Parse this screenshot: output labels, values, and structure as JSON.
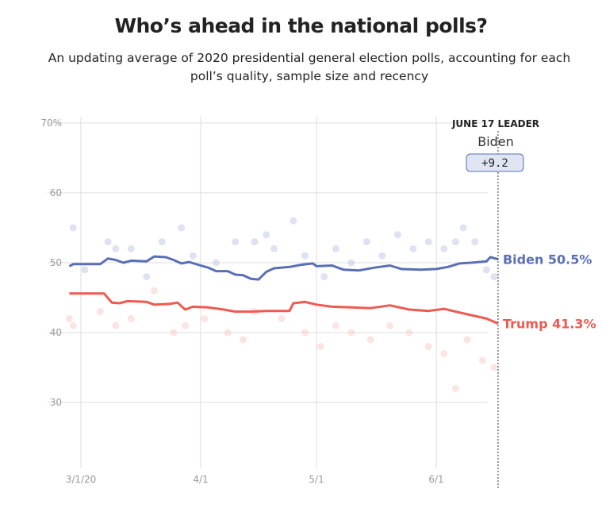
{
  "title": "Who’s ahead in the national polls?",
  "subtitle": "An updating average of 2020 presidential general election polls, accounting for each poll’s quality, sample size and recency",
  "leader": {
    "heading": "JUNE 17 LEADER",
    "name": "Biden",
    "margin": "+9.2"
  },
  "chart_data": {
    "type": "line",
    "title": "Who’s ahead in the national polls?",
    "ylim": [
      30,
      70
    ],
    "yticks": [
      {
        "v": 70,
        "label": "70%"
      },
      {
        "v": 60,
        "label": "60"
      },
      {
        "v": 50,
        "label": "50"
      },
      {
        "v": 40,
        "label": "40"
      },
      {
        "v": 30,
        "label": "30"
      }
    ],
    "xlim": [
      "2020-02-23",
      "2020-06-21"
    ],
    "xticks": [
      {
        "d": "2020-03-01",
        "label": "3/1/20"
      },
      {
        "d": "2020-04-01",
        "label": "4/1"
      },
      {
        "d": "2020-05-01",
        "label": "5/1"
      },
      {
        "d": "2020-06-01",
        "label": "6/1"
      }
    ],
    "grid": true,
    "marker_date": "2020-06-17",
    "series": [
      {
        "name": "Biden",
        "end_label": "Biden 50.5%",
        "color": "#5a6fb5",
        "dot_color": "#c3cbe6",
        "points": [
          [
            "2020-02-27",
            49.5
          ],
          [
            "2020-02-28",
            49.8
          ],
          [
            "2020-03-06",
            49.8
          ],
          [
            "2020-03-08",
            50.6
          ],
          [
            "2020-03-10",
            50.4
          ],
          [
            "2020-03-12",
            50.0
          ],
          [
            "2020-03-14",
            50.3
          ],
          [
            "2020-03-18",
            50.2
          ],
          [
            "2020-03-20",
            50.9
          ],
          [
            "2020-03-23",
            50.8
          ],
          [
            "2020-03-25",
            50.4
          ],
          [
            "2020-03-27",
            49.9
          ],
          [
            "2020-03-29",
            50.1
          ],
          [
            "2020-04-01",
            49.6
          ],
          [
            "2020-04-03",
            49.3
          ],
          [
            "2020-04-05",
            48.8
          ],
          [
            "2020-04-08",
            48.8
          ],
          [
            "2020-04-10",
            48.3
          ],
          [
            "2020-04-12",
            48.2
          ],
          [
            "2020-04-14",
            47.7
          ],
          [
            "2020-04-16",
            47.6
          ],
          [
            "2020-04-18",
            48.7
          ],
          [
            "2020-04-20",
            49.2
          ],
          [
            "2020-04-24",
            49.4
          ],
          [
            "2020-04-27",
            49.7
          ],
          [
            "2020-04-30",
            49.9
          ],
          [
            "2020-05-01",
            49.5
          ],
          [
            "2020-05-05",
            49.6
          ],
          [
            "2020-05-08",
            49.0
          ],
          [
            "2020-05-12",
            48.9
          ],
          [
            "2020-05-16",
            49.3
          ],
          [
            "2020-05-20",
            49.6
          ],
          [
            "2020-05-23",
            49.1
          ],
          [
            "2020-05-28",
            49.0
          ],
          [
            "2020-06-01",
            49.1
          ],
          [
            "2020-06-04",
            49.4
          ],
          [
            "2020-06-07",
            49.9
          ],
          [
            "2020-06-10",
            50.0
          ],
          [
            "2020-06-14",
            50.2
          ],
          [
            "2020-06-15",
            50.8
          ],
          [
            "2020-06-17",
            50.5
          ]
        ],
        "polls": [
          [
            "2020-02-28",
            55
          ],
          [
            "2020-03-02",
            49
          ],
          [
            "2020-03-08",
            53
          ],
          [
            "2020-03-10",
            52
          ],
          [
            "2020-03-14",
            52
          ],
          [
            "2020-03-18",
            48
          ],
          [
            "2020-03-22",
            53
          ],
          [
            "2020-03-27",
            55
          ],
          [
            "2020-03-30",
            51
          ],
          [
            "2020-04-05",
            50
          ],
          [
            "2020-04-10",
            53
          ],
          [
            "2020-04-15",
            53
          ],
          [
            "2020-04-18",
            54
          ],
          [
            "2020-04-20",
            52
          ],
          [
            "2020-04-25",
            56
          ],
          [
            "2020-04-28",
            51
          ],
          [
            "2020-05-03",
            48
          ],
          [
            "2020-05-06",
            52
          ],
          [
            "2020-05-10",
            50
          ],
          [
            "2020-05-14",
            53
          ],
          [
            "2020-05-18",
            51
          ],
          [
            "2020-05-22",
            54
          ],
          [
            "2020-05-26",
            52
          ],
          [
            "2020-05-30",
            53
          ],
          [
            "2020-06-03",
            52
          ],
          [
            "2020-06-06",
            53
          ],
          [
            "2020-06-08",
            55
          ],
          [
            "2020-06-11",
            53
          ],
          [
            "2020-06-14",
            49
          ],
          [
            "2020-06-16",
            48
          ]
        ]
      },
      {
        "name": "Trump",
        "end_label": "Trump 41.3%",
        "color": "#ef5a50",
        "dot_color": "#f7cfcc",
        "points": [
          [
            "2020-02-27",
            45.6
          ],
          [
            "2020-03-07",
            45.6
          ],
          [
            "2020-03-09",
            44.3
          ],
          [
            "2020-03-11",
            44.2
          ],
          [
            "2020-03-13",
            44.5
          ],
          [
            "2020-03-18",
            44.4
          ],
          [
            "2020-03-20",
            44.0
          ],
          [
            "2020-03-24",
            44.1
          ],
          [
            "2020-03-26",
            44.3
          ],
          [
            "2020-03-28",
            43.3
          ],
          [
            "2020-03-30",
            43.7
          ],
          [
            "2020-04-03",
            43.6
          ],
          [
            "2020-04-07",
            43.3
          ],
          [
            "2020-04-10",
            43.0
          ],
          [
            "2020-04-14",
            43.0
          ],
          [
            "2020-04-18",
            43.1
          ],
          [
            "2020-04-24",
            43.1
          ],
          [
            "2020-04-25",
            44.2
          ],
          [
            "2020-04-28",
            44.4
          ],
          [
            "2020-05-01",
            44.0
          ],
          [
            "2020-05-05",
            43.7
          ],
          [
            "2020-05-10",
            43.6
          ],
          [
            "2020-05-15",
            43.5
          ],
          [
            "2020-05-20",
            43.9
          ],
          [
            "2020-05-25",
            43.3
          ],
          [
            "2020-05-30",
            43.1
          ],
          [
            "2020-06-03",
            43.4
          ],
          [
            "2020-06-06",
            43.0
          ],
          [
            "2020-06-10",
            42.5
          ],
          [
            "2020-06-14",
            42.0
          ],
          [
            "2020-06-17",
            41.3
          ]
        ],
        "polls": [
          [
            "2020-02-27",
            42
          ],
          [
            "2020-02-28",
            41
          ],
          [
            "2020-03-06",
            43
          ],
          [
            "2020-03-10",
            41
          ],
          [
            "2020-03-14",
            42
          ],
          [
            "2020-03-20",
            46
          ],
          [
            "2020-03-25",
            40
          ],
          [
            "2020-03-28",
            41
          ],
          [
            "2020-04-02",
            42
          ],
          [
            "2020-04-08",
            40
          ],
          [
            "2020-04-12",
            39
          ],
          [
            "2020-04-15",
            43
          ],
          [
            "2020-04-22",
            42
          ],
          [
            "2020-04-28",
            40
          ],
          [
            "2020-05-02",
            38
          ],
          [
            "2020-05-06",
            41
          ],
          [
            "2020-05-10",
            40
          ],
          [
            "2020-05-15",
            39
          ],
          [
            "2020-05-20",
            41
          ],
          [
            "2020-05-25",
            40
          ],
          [
            "2020-05-30",
            38
          ],
          [
            "2020-06-03",
            37
          ],
          [
            "2020-06-06",
            32
          ],
          [
            "2020-06-09",
            39
          ],
          [
            "2020-06-13",
            36
          ],
          [
            "2020-06-16",
            35
          ]
        ]
      }
    ]
  }
}
